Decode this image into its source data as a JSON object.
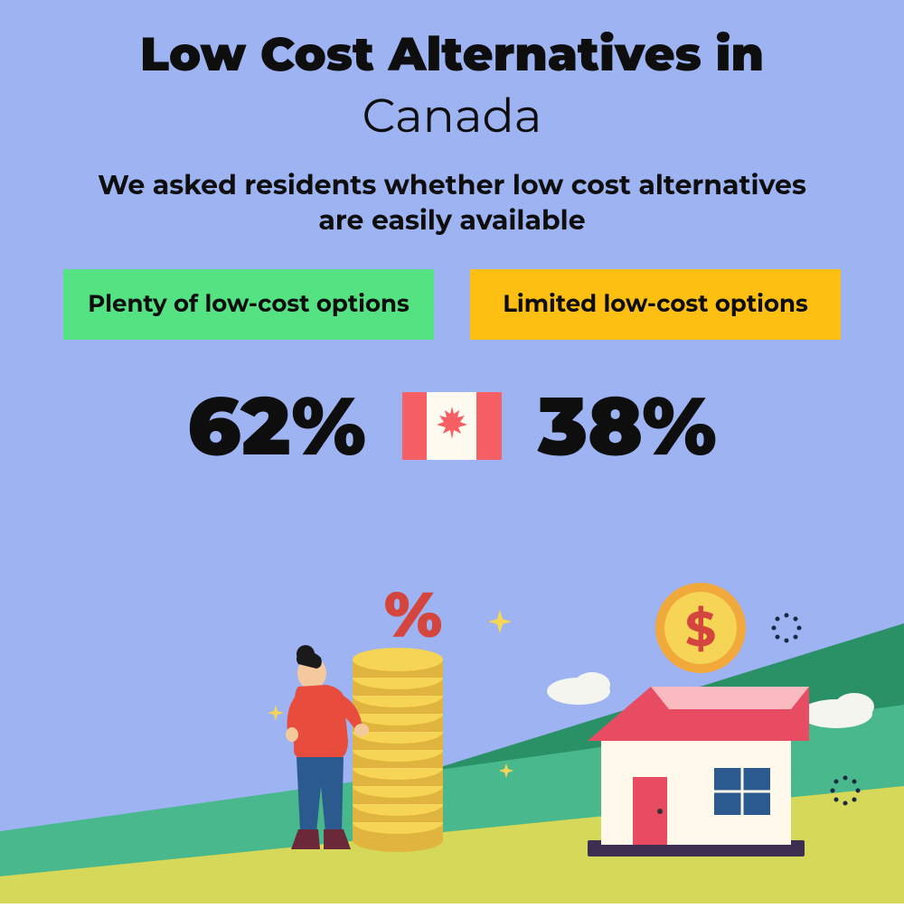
{
  "background_color": "#9db3f2",
  "text_color": "#0e0e0e",
  "header": {
    "title": "Low Cost Alternatives in",
    "subtitle": "Canada",
    "description": "We asked residents whether low cost alternatives are easily available"
  },
  "badges": {
    "left": {
      "label": "Plenty of low-cost options",
      "background_color": "#54e283"
    },
    "right": {
      "label": "Limited low-cost options",
      "background_color": "#fdbf12"
    }
  },
  "stats": {
    "left_value": "62%",
    "right_value": "38%"
  },
  "flag": {
    "red_color": "#f65f64",
    "white_color": "#fefaf0",
    "leaf_color": "#f65f64"
  },
  "illustration": {
    "ground_green_light": "#4ab88d",
    "ground_green_dark": "#2a9166",
    "ground_yellow": "#d5d858",
    "house_wall": "#fef9ea",
    "house_roof": "#e74c62",
    "house_roof_top": "#f9bac0",
    "house_door": "#e74c62",
    "house_window": "#2b5a8f",
    "house_base": "#3d2f52",
    "coin_gold": "#f6d455",
    "coin_gold_dark": "#e0b43e",
    "coin_outer": "#f2a93c",
    "dollar_color": "#d4453e",
    "percent_color": "#d4453e",
    "person_shirt": "#e74c3c",
    "person_pants": "#2b5a8f",
    "person_skin": "#f5c99e",
    "person_hair": "#1a1a1a",
    "person_boots": "#6b2838",
    "cloud_color": "#f5f5f0",
    "sparkle_color": "#f6d455",
    "dot_circle_color": "#1a2942"
  }
}
